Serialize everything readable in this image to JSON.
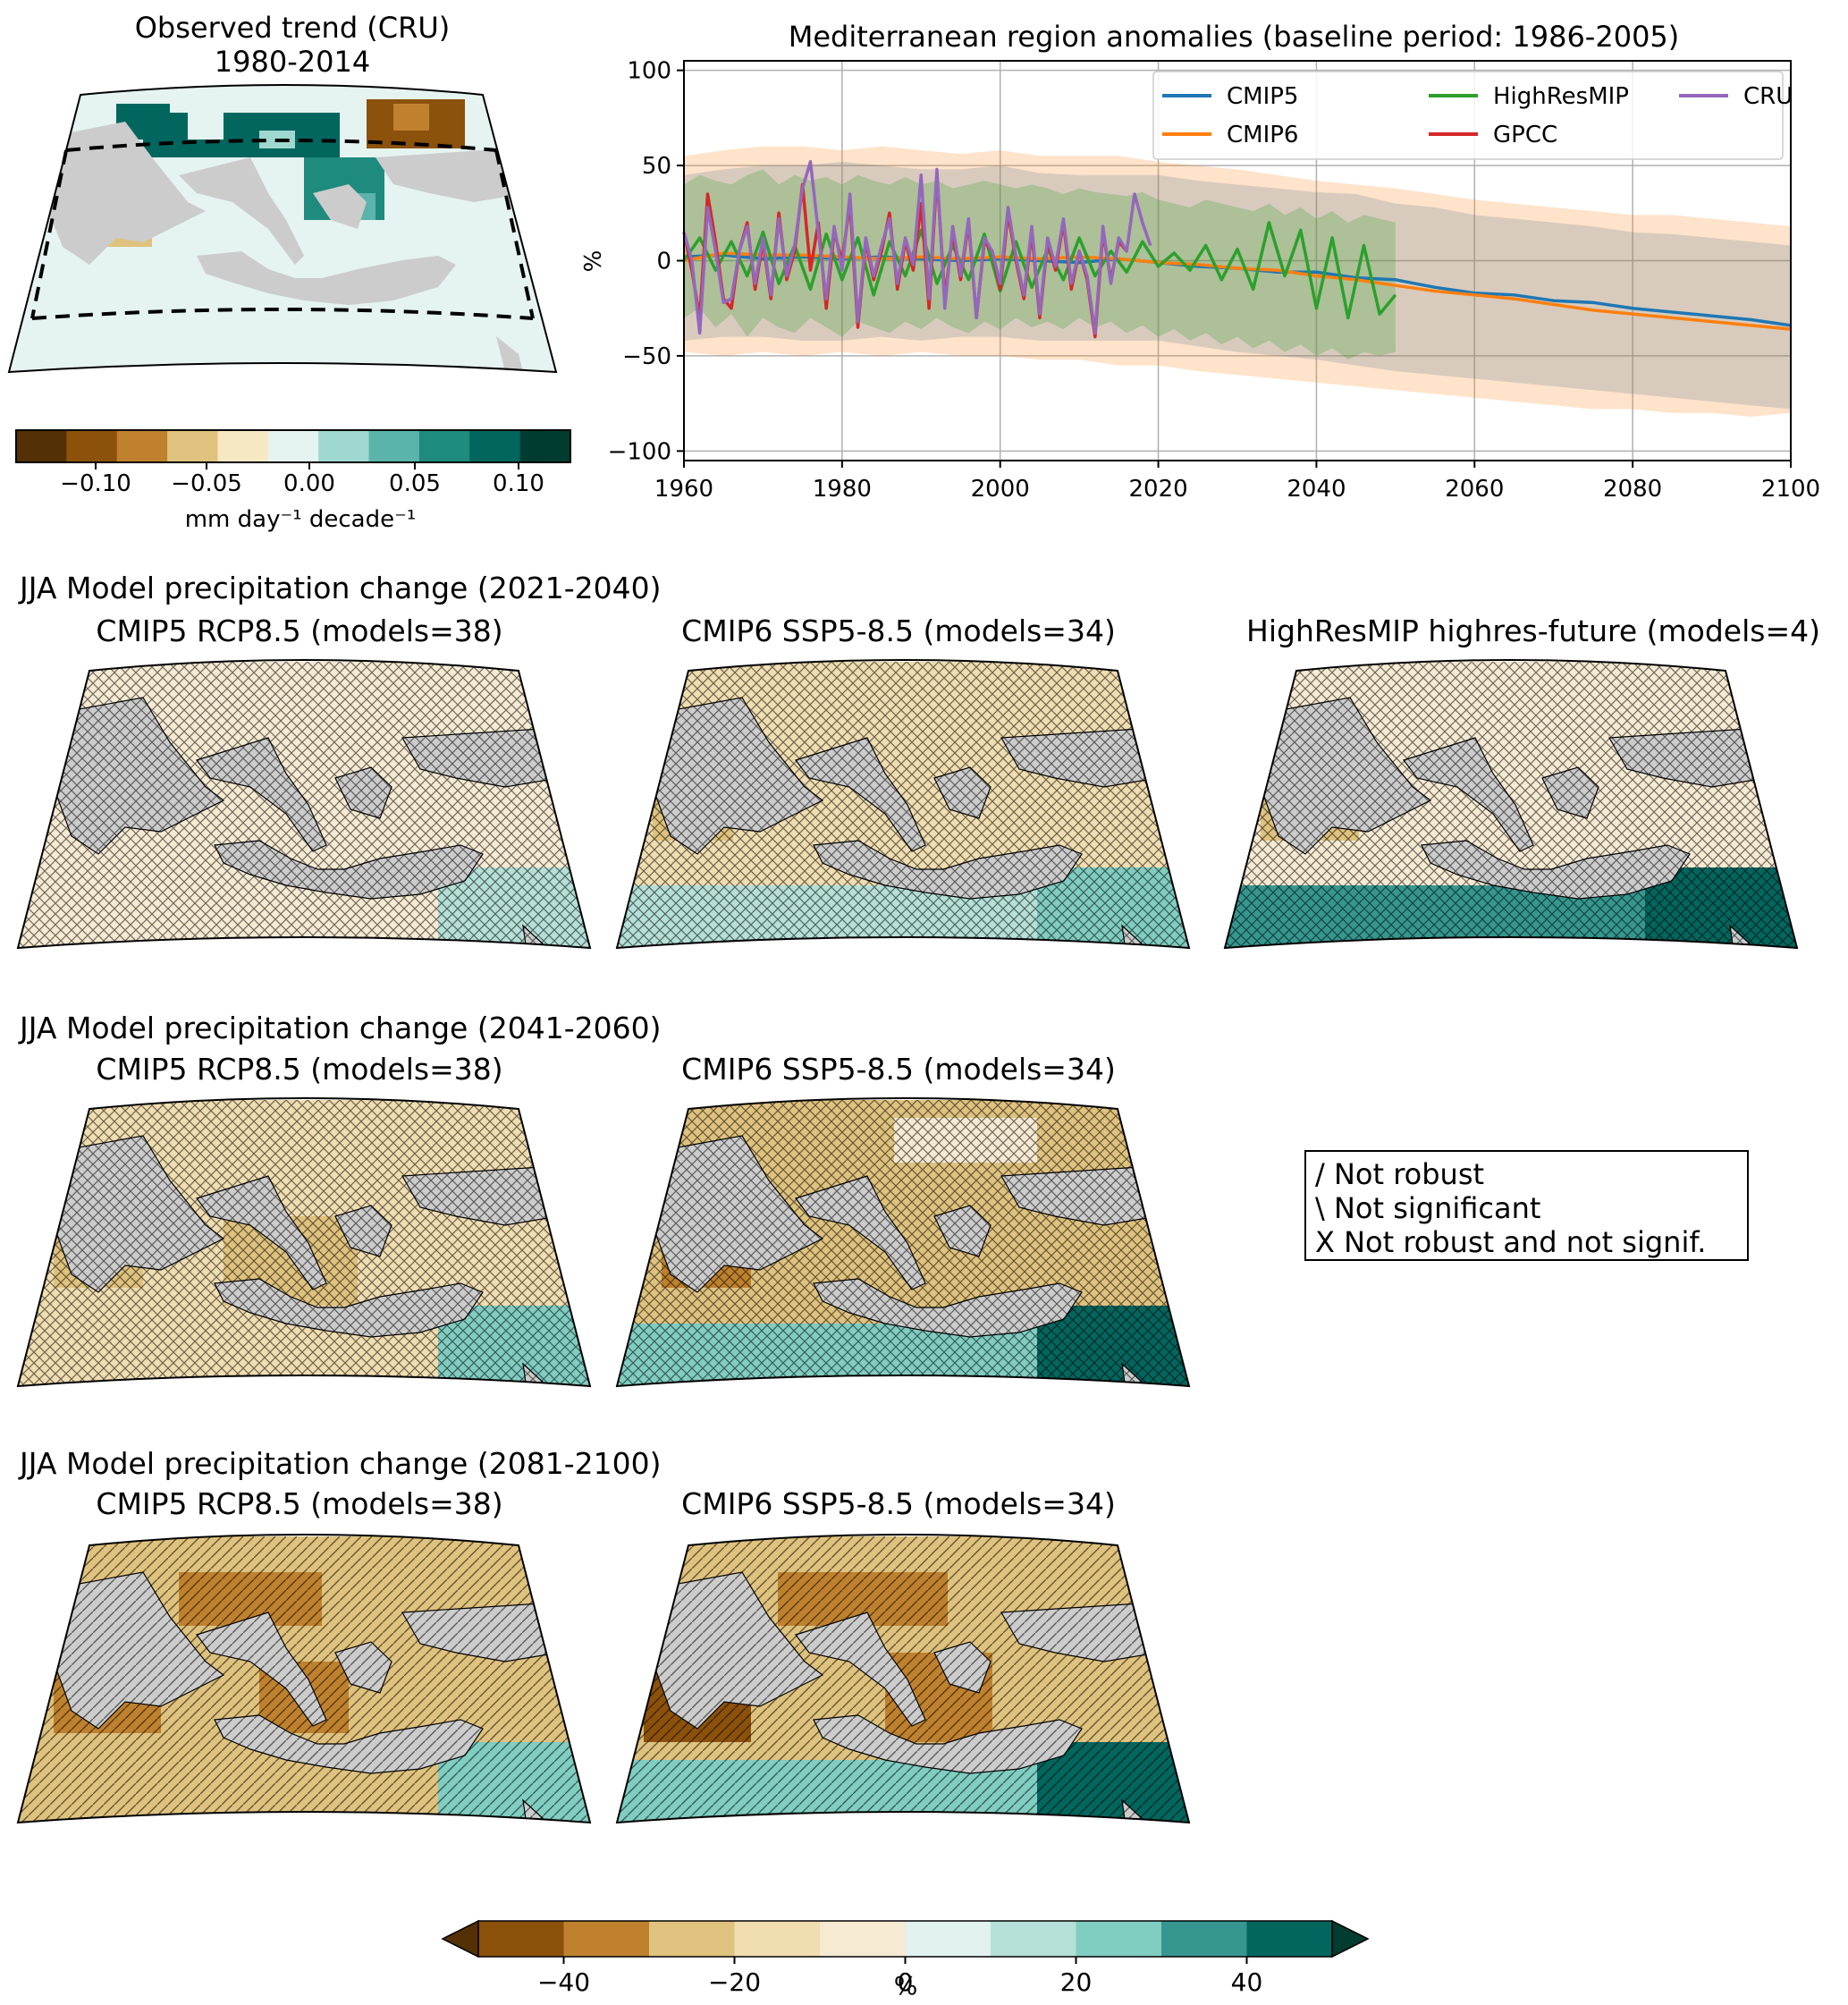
{
  "obs_panel": {
    "title_line1": "Observed trend (CRU)",
    "title_line2": "1980-2014",
    "colorbar": {
      "ticks": [
        "−0.10",
        "−0.05",
        "0.00",
        "0.05",
        "0.10"
      ],
      "label": "mm day⁻¹ decade⁻¹",
      "colors": [
        "#543005",
        "#8c510a",
        "#bf812d",
        "#dfc27d",
        "#f6e8c3",
        "#e5f3f1",
        "#9fd8cf",
        "#5ab4ac",
        "#1f8a7e",
        "#01665e",
        "#003c30"
      ]
    }
  },
  "chart_data": [
    {
      "type": "line",
      "title": "Mediterranean region anomalies (baseline period: 1986-2005)",
      "xlabel": "",
      "ylabel": "%",
      "xlim": [
        1960,
        2100
      ],
      "ylim": [
        -105,
        105
      ],
      "xticks": [
        "1960",
        "1980",
        "2000",
        "2020",
        "2040",
        "2060",
        "2080",
        "2100"
      ],
      "yticks": [
        "100",
        "50",
        "0",
        "−50",
        "−100"
      ],
      "grid": true,
      "legend_position": "top-right",
      "series": [
        {
          "name": "CMIP5",
          "color": "#1f77b4",
          "x": [
            1960,
            1965,
            1970,
            1975,
            1980,
            1985,
            1990,
            1995,
            2000,
            2005,
            2010,
            2015,
            2020,
            2025,
            2030,
            2035,
            2040,
            2045,
            2050,
            2055,
            2060,
            2065,
            2070,
            2075,
            2080,
            2085,
            2090,
            2095,
            2100
          ],
          "y": [
            2,
            3,
            1,
            2,
            1,
            2,
            1,
            0,
            1,
            0,
            -1,
            1,
            -1,
            -3,
            -4,
            -6,
            -6,
            -9,
            -10,
            -14,
            -17,
            -18,
            -21,
            -22,
            -25,
            -27,
            -29,
            -31,
            -34
          ],
          "band": [
            [
              -42,
              45
            ],
            [
              -40,
              48
            ],
            [
              -40,
              50
            ],
            [
              -42,
              50
            ],
            [
              -42,
              52
            ],
            [
              -40,
              50
            ],
            [
              -42,
              48
            ],
            [
              -40,
              48
            ],
            [
              -40,
              50
            ],
            [
              -42,
              46
            ],
            [
              -42,
              45
            ],
            [
              -42,
              45
            ],
            [
              -42,
              45
            ],
            [
              -45,
              42
            ],
            [
              -48,
              40
            ],
            [
              -50,
              38
            ],
            [
              -52,
              36
            ],
            [
              -55,
              35
            ],
            [
              -58,
              30
            ],
            [
              -60,
              28
            ],
            [
              -62,
              24
            ],
            [
              -64,
              22
            ],
            [
              -66,
              20
            ],
            [
              -68,
              18
            ],
            [
              -70,
              15
            ],
            [
              -72,
              14
            ],
            [
              -74,
              12
            ],
            [
              -76,
              10
            ],
            [
              -78,
              8
            ]
          ]
        },
        {
          "name": "CMIP6",
          "color": "#ff7f0e",
          "x": [
            1960,
            1965,
            1970,
            1975,
            1980,
            1985,
            1990,
            1995,
            2000,
            2005,
            2010,
            2015,
            2020,
            2025,
            2030,
            2035,
            2040,
            2045,
            2050,
            2055,
            2060,
            2065,
            2070,
            2075,
            2080,
            2085,
            2090,
            2095,
            2100
          ],
          "y": [
            0,
            4,
            3,
            3,
            2,
            1,
            2,
            1,
            2,
            1,
            2,
            1,
            -1,
            -2,
            -4,
            -5,
            -8,
            -10,
            -13,
            -16,
            -18,
            -20,
            -23,
            -26,
            -28,
            -30,
            -32,
            -34,
            -36
          ],
          "band": [
            [
              -48,
              55
            ],
            [
              -50,
              58
            ],
            [
              -48,
              60
            ],
            [
              -50,
              60
            ],
            [
              -48,
              58
            ],
            [
              -50,
              60
            ],
            [
              -48,
              58
            ],
            [
              -50,
              56
            ],
            [
              -50,
              58
            ],
            [
              -52,
              55
            ],
            [
              -52,
              55
            ],
            [
              -55,
              55
            ],
            [
              -55,
              52
            ],
            [
              -58,
              50
            ],
            [
              -60,
              48
            ],
            [
              -62,
              45
            ],
            [
              -64,
              42
            ],
            [
              -66,
              40
            ],
            [
              -68,
              38
            ],
            [
              -70,
              35
            ],
            [
              -72,
              32
            ],
            [
              -74,
              30
            ],
            [
              -76,
              28
            ],
            [
              -78,
              26
            ],
            [
              -78,
              24
            ],
            [
              -80,
              24
            ],
            [
              -80,
              22
            ],
            [
              -82,
              20
            ],
            [
              -80,
              18
            ]
          ]
        },
        {
          "name": "HighResMIP",
          "color": "#2ca02c",
          "x": [
            1960,
            1962,
            1964,
            1966,
            1968,
            1970,
            1972,
            1974,
            1976,
            1978,
            1980,
            1982,
            1984,
            1986,
            1988,
            1990,
            1992,
            1994,
            1996,
            1998,
            2000,
            2002,
            2004,
            2006,
            2008,
            2010,
            2012,
            2014,
            2016,
            2018,
            2020,
            2022,
            2024,
            2026,
            2028,
            2030,
            2032,
            2034,
            2036,
            2038,
            2040,
            2042,
            2044,
            2046,
            2048,
            2050
          ],
          "y": [
            0,
            12,
            -5,
            10,
            -8,
            15,
            -12,
            8,
            -15,
            14,
            -10,
            12,
            -18,
            10,
            -8,
            16,
            -12,
            8,
            -10,
            14,
            -16,
            10,
            -14,
            6,
            -10,
            12,
            -8,
            5,
            -6,
            10,
            -3,
            4,
            -5,
            8,
            -10,
            6,
            -15,
            20,
            -8,
            16,
            -25,
            12,
            -30,
            8,
            -28,
            -18
          ],
          "band": [
            [
              -30,
              40
            ],
            [
              -25,
              45
            ],
            [
              -35,
              42
            ],
            [
              -28,
              40
            ],
            [
              -40,
              45
            ],
            [
              -30,
              48
            ],
            [
              -35,
              40
            ],
            [
              -38,
              45
            ],
            [
              -30,
              42
            ],
            [
              -35,
              44
            ],
            [
              -40,
              40
            ],
            [
              -32,
              45
            ],
            [
              -35,
              42
            ],
            [
              -38,
              40
            ],
            [
              -32,
              44
            ],
            [
              -36,
              40
            ],
            [
              -30,
              42
            ],
            [
              -35,
              38
            ],
            [
              -38,
              40
            ],
            [
              -32,
              42
            ],
            [
              -36,
              40
            ],
            [
              -30,
              38
            ],
            [
              -35,
              40
            ],
            [
              -32,
              38
            ],
            [
              -36,
              35
            ],
            [
              -30,
              38
            ],
            [
              -35,
              36
            ],
            [
              -32,
              35
            ],
            [
              -38,
              34
            ],
            [
              -34,
              36
            ],
            [
              -40,
              32
            ],
            [
              -36,
              30
            ],
            [
              -42,
              28
            ],
            [
              -38,
              32
            ],
            [
              -44,
              30
            ],
            [
              -40,
              28
            ],
            [
              -46,
              26
            ],
            [
              -42,
              30
            ],
            [
              -48,
              24
            ],
            [
              -44,
              28
            ],
            [
              -50,
              22
            ],
            [
              -46,
              26
            ],
            [
              -52,
              20
            ],
            [
              -48,
              24
            ],
            [
              -50,
              22
            ],
            [
              -48,
              20
            ]
          ]
        },
        {
          "name": "GPCC",
          "color": "#d62728",
          "x": [
            1960,
            1961,
            1962,
            1963,
            1964,
            1965,
            1966,
            1967,
            1968,
            1969,
            1970,
            1971,
            1972,
            1973,
            1974,
            1975,
            1976,
            1977,
            1978,
            1979,
            1980,
            1981,
            1982,
            1983,
            1984,
            1985,
            1986,
            1987,
            1988,
            1989,
            1990,
            1991,
            1992,
            1993,
            1994,
            1995,
            1996,
            1997,
            1998,
            1999,
            2000,
            2001,
            2002,
            2003,
            2004,
            2005,
            2006,
            2007,
            2008,
            2009,
            2010,
            2011,
            2012,
            2013,
            2014,
            2015,
            2016
          ],
          "y": [
            15,
            -5,
            -30,
            35,
            10,
            -20,
            -25,
            5,
            20,
            -15,
            10,
            -20,
            25,
            -10,
            5,
            40,
            -5,
            20,
            -25,
            15,
            0,
            30,
            -35,
            10,
            -10,
            5,
            25,
            -15,
            10,
            -5,
            30,
            -25,
            45,
            -20,
            15,
            -10,
            20,
            -30,
            10,
            5,
            -15,
            25,
            0,
            -20,
            15,
            -30,
            10,
            -5,
            20,
            -15,
            5,
            -10,
            -40,
            15,
            -10,
            10,
            5
          ]
        },
        {
          "name": "CRU",
          "color": "#9467bd",
          "x": [
            1960,
            1961,
            1962,
            1963,
            1964,
            1965,
            1966,
            1967,
            1968,
            1969,
            1970,
            1971,
            1972,
            1973,
            1974,
            1975,
            1976,
            1977,
            1978,
            1979,
            1980,
            1981,
            1982,
            1983,
            1984,
            1985,
            1986,
            1987,
            1988,
            1989,
            1990,
            1991,
            1992,
            1993,
            1994,
            1995,
            1996,
            1997,
            1998,
            1999,
            2000,
            2001,
            2002,
            2003,
            2004,
            2005,
            2006,
            2007,
            2008,
            2009,
            2010,
            2011,
            2012,
            2013,
            2014,
            2015,
            2016,
            2017,
            2018,
            2019
          ],
          "y": [
            15,
            0,
            -38,
            28,
            5,
            -22,
            -20,
            5,
            18,
            -12,
            12,
            -18,
            22,
            -8,
            8,
            38,
            52,
            15,
            -20,
            18,
            -5,
            35,
            -32,
            12,
            -8,
            8,
            22,
            -12,
            12,
            -2,
            45,
            -20,
            48,
            -25,
            18,
            -8,
            22,
            -30,
            12,
            5,
            -12,
            28,
            2,
            -18,
            18,
            -28,
            12,
            -3,
            22,
            -12,
            5,
            -8,
            -38,
            18,
            -12,
            12,
            5,
            35,
            20,
            8
          ]
        }
      ]
    }
  ],
  "model_maps": {
    "rows": [
      {
        "header": "JJA Model precipitation change (2021-2040)",
        "panels": [
          "CMIP5 RCP8.5 (models=38)",
          "CMIP6 SSP5-8.5 (models=34)",
          "HighResMIP highres-future (models=4)"
        ]
      },
      {
        "header": "JJA Model precipitation change (2041-2060)",
        "panels": [
          "CMIP5 RCP8.5 (models=38)",
          "CMIP6 SSP5-8.5 (models=34)"
        ]
      },
      {
        "header": "JJA Model precipitation change (2081-2100)",
        "panels": [
          "CMIP5 RCP8.5 (models=38)",
          "CMIP6 SSP5-8.5 (models=34)"
        ]
      }
    ],
    "hatch_legend": [
      "/ Not robust",
      "\\ Not significant",
      "X Not robust and not signif."
    ],
    "colorbar": {
      "ticks": [
        "−40",
        "−20",
        "0",
        "20",
        "40"
      ],
      "label": "%",
      "colors": [
        "#8c510a",
        "#bf812d",
        "#dfc27d",
        "#f0ddb0",
        "#f6ead2",
        "#e2f2ef",
        "#b5e0d8",
        "#80cdc1",
        "#35978f",
        "#01665e"
      ]
    }
  },
  "colors": {
    "land": "#cccccc",
    "map_frame": "#000000"
  }
}
